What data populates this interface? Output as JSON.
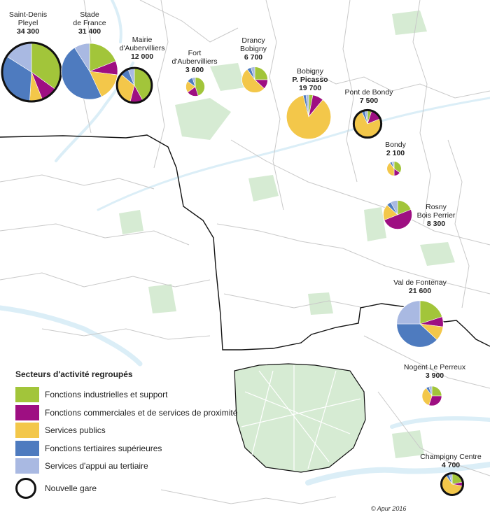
{
  "map": {
    "legend_title": "Secteurs d'activité regroupés",
    "categories": [
      {
        "label": "Fonctions industrielles et support",
        "color": "#a2c53a"
      },
      {
        "label": "Fonctions commerciales et de services de proximité",
        "color": "#9e0f82"
      },
      {
        "label": "Services publics",
        "color": "#f3c74a"
      },
      {
        "label": "Fonctions tertiaires supérieures",
        "color": "#4e7bbf"
      },
      {
        "label": "Services d'appui au tertiaire",
        "color": "#a9b9e2"
      }
    ],
    "nouvelle_gare_label": "Nouvelle gare",
    "credit": "© Apur 2016",
    "colors": {
      "park": "#d6ebd3",
      "water": "#dbeef7",
      "boundary": "#c9c9c9",
      "dept_line": "#111111",
      "gare_ring": "#111111"
    }
  },
  "chart_data": {
    "type": "pie",
    "unit": "emplois",
    "categories": [
      "Fonctions industrielles et support",
      "Fonctions commerciales et de services de proximité",
      "Services publics",
      "Fonctions tertiaires supérieures",
      "Services d'appui au tertiaire"
    ],
    "stations": [
      {
        "name_line1": "Saint-Denis",
        "name_line2": "Pleyel",
        "total": 34300,
        "label": "34 300",
        "nouvelle_gare": true,
        "shares": [
          0.35,
          0.09,
          0.07,
          0.33,
          0.16
        ]
      },
      {
        "name_line1": "Stade",
        "name_line2": "de France",
        "total": 31400,
        "label": "31 400",
        "nouvelle_gare": false,
        "shares": [
          0.19,
          0.08,
          0.16,
          0.48,
          0.09
        ]
      },
      {
        "name_line1": "Mairie",
        "name_line2": "d'Aubervilliers",
        "total": 12000,
        "label": "12 000",
        "nouvelle_gare": true,
        "shares": [
          0.42,
          0.12,
          0.32,
          0.08,
          0.06
        ]
      },
      {
        "name_line1": "Fort",
        "name_line2": "d'Aubervilliers",
        "total": 3600,
        "label": "3 600",
        "nouvelle_gare": false,
        "shares": [
          0.45,
          0.2,
          0.2,
          0.1,
          0.05
        ]
      },
      {
        "name_line1": "Drancy",
        "name_line2": "Bobigny",
        "total": 6700,
        "label": "6 700",
        "nouvelle_gare": false,
        "shares": [
          0.25,
          0.12,
          0.53,
          0.05,
          0.05
        ]
      },
      {
        "name_line1": "Bobigny",
        "name_line2": "P. Picasso",
        "total": 19700,
        "label": "19 700",
        "nouvelle_gare": false,
        "shares": [
          0.03,
          0.08,
          0.85,
          0.02,
          0.02
        ]
      },
      {
        "name_line1": "Pont de Bondy",
        "name_line2": "",
        "total": 7500,
        "label": "7 500",
        "nouvelle_gare": true,
        "shares": [
          0.05,
          0.14,
          0.74,
          0.04,
          0.03
        ]
      },
      {
        "name_line1": "Bondy",
        "name_line2": "",
        "total": 2100,
        "label": "2 100",
        "nouvelle_gare": false,
        "shares": [
          0.35,
          0.15,
          0.4,
          0.05,
          0.05
        ]
      },
      {
        "name_line1": "Rosny",
        "name_line2": "Bois Perrier",
        "total": 8300,
        "label": "8 300",
        "nouvelle_gare": false,
        "shares": [
          0.19,
          0.5,
          0.18,
          0.05,
          0.08
        ]
      },
      {
        "name_line1": "Val de Fontenay",
        "name_line2": "",
        "total": 21600,
        "label": "21 600",
        "nouvelle_gare": false,
        "shares": [
          0.2,
          0.07,
          0.1,
          0.38,
          0.25
        ]
      },
      {
        "name_line1": "Nogent Le Perreux",
        "name_line2": "",
        "total": 3900,
        "label": "3 900",
        "nouvelle_gare": false,
        "shares": [
          0.25,
          0.3,
          0.35,
          0.05,
          0.05
        ]
      },
      {
        "name_line1": "Champigny Centre",
        "name_line2": "",
        "total": 4700,
        "label": "4 700",
        "nouvelle_gare": true,
        "shares": [
          0.22,
          0.06,
          0.62,
          0.05,
          0.05
        ]
      }
    ]
  }
}
